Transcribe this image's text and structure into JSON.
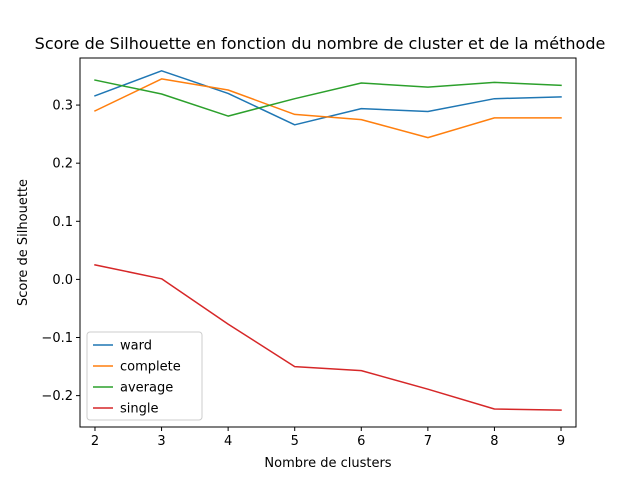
{
  "chart_data": {
    "type": "line",
    "title": "Score de Silhouette en fonction du nombre de cluster et de la méthode",
    "xlabel": "Nombre de clusters",
    "ylabel": "Score de Silhouette",
    "x": [
      2,
      3,
      4,
      5,
      6,
      7,
      8,
      9
    ],
    "xlim": [
      1.775,
      9.225
    ],
    "ylim": [
      -0.254,
      0.381
    ],
    "xticks": [
      2,
      3,
      4,
      5,
      6,
      7,
      8,
      9
    ],
    "yticks": [
      -0.2,
      -0.1,
      0.0,
      0.1,
      0.2,
      0.3
    ],
    "ytick_labels": [
      "−0.2",
      "−0.1",
      "0.0",
      "0.1",
      "0.2",
      "0.3"
    ],
    "grid": false,
    "legend_position": "lower-left",
    "series": [
      {
        "name": "ward",
        "color": "#1f77b4",
        "values": [
          0.316,
          0.359,
          0.32,
          0.266,
          0.294,
          0.289,
          0.311,
          0.314
        ]
      },
      {
        "name": "complete",
        "color": "#ff7f0e",
        "values": [
          0.29,
          0.345,
          0.326,
          0.284,
          0.275,
          0.244,
          0.278,
          0.278
        ]
      },
      {
        "name": "average",
        "color": "#2ca02c",
        "values": [
          0.343,
          0.319,
          0.281,
          0.311,
          0.338,
          0.331,
          0.339,
          0.334
        ]
      },
      {
        "name": "single",
        "color": "#d62728",
        "values": [
          0.025,
          0.001,
          -0.077,
          -0.15,
          -0.157,
          -0.189,
          -0.223,
          -0.225
        ]
      }
    ]
  }
}
